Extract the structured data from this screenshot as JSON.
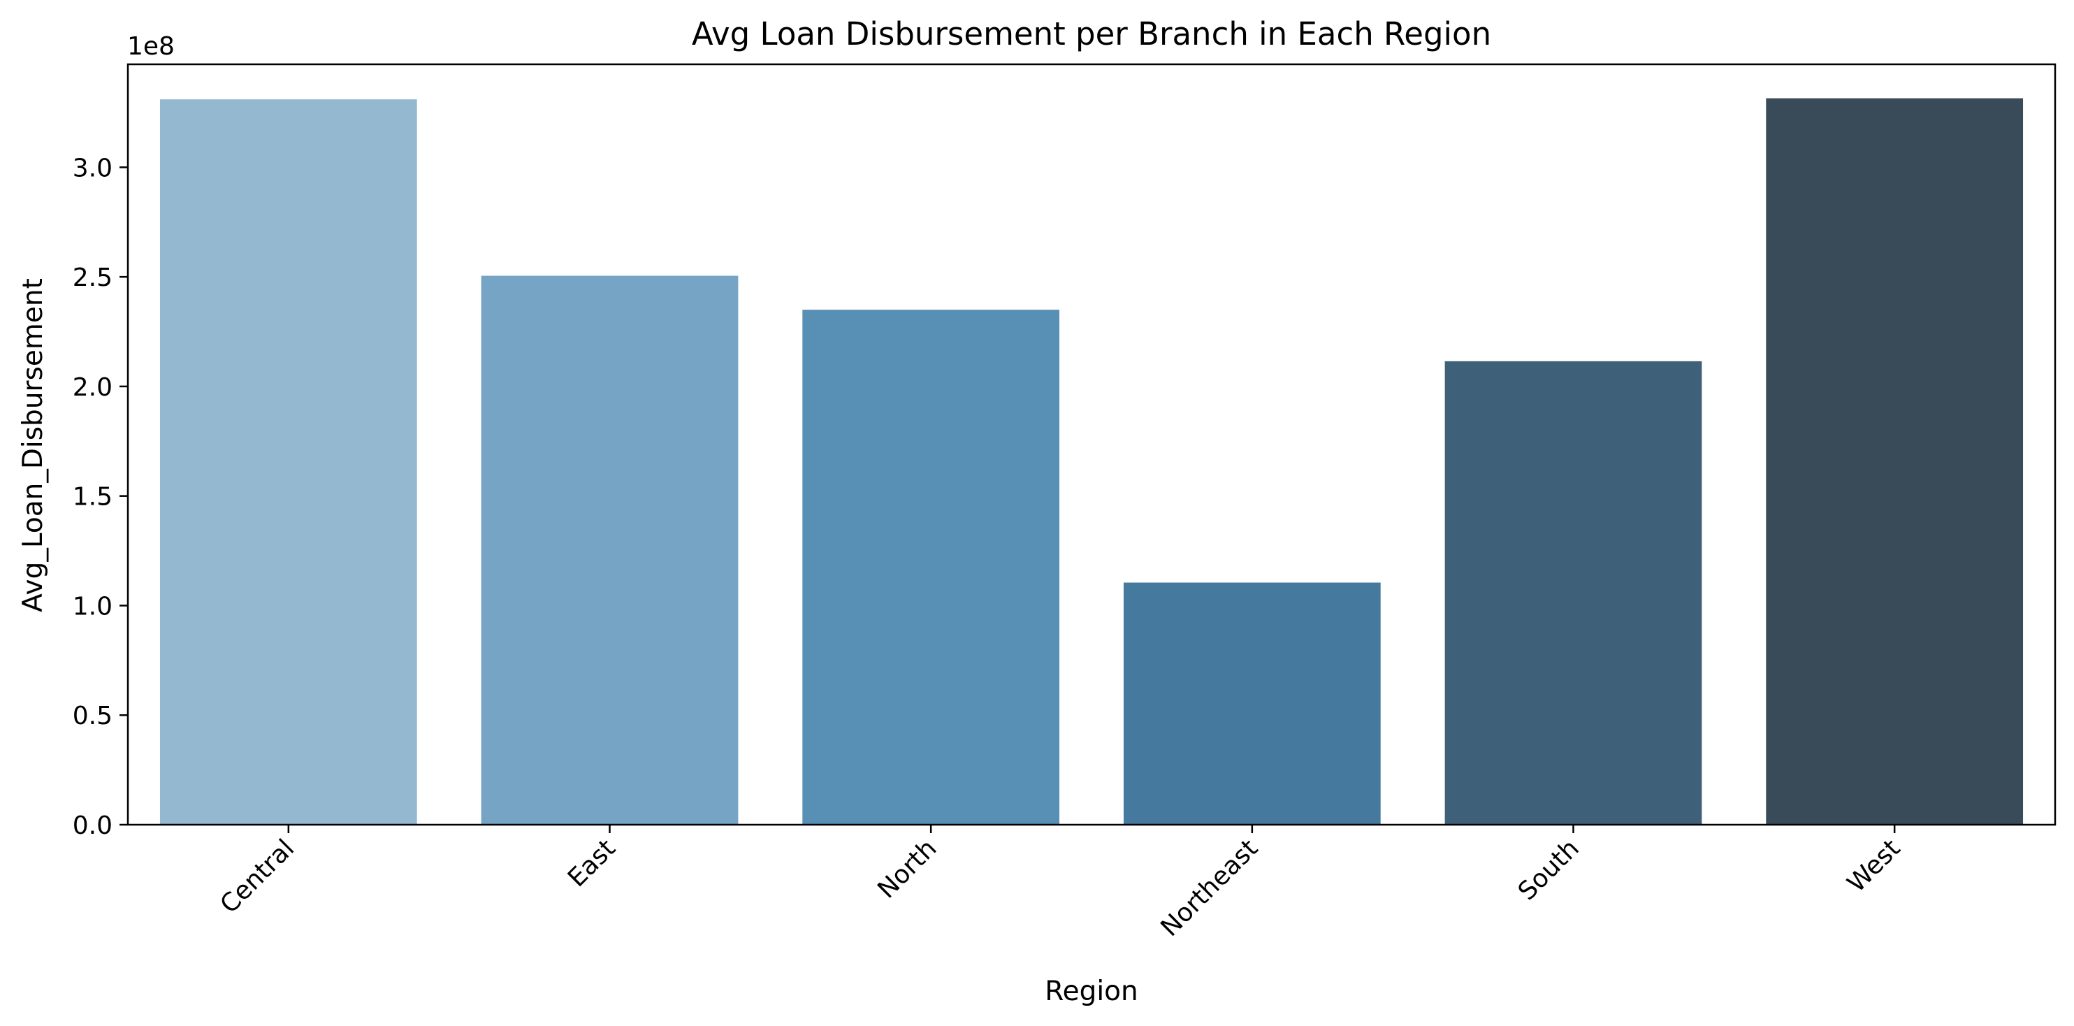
{
  "chart_data": {
    "type": "bar",
    "title": "Avg Loan Disbursement per Branch in Each Region",
    "xlabel": "Region",
    "ylabel": "Avg_Loan_Disbursement",
    "y_offset_label": "1e8",
    "y_scale": 100000000,
    "categories": [
      "Central",
      "East",
      "North",
      "Northeast",
      "South",
      "West"
    ],
    "values": [
      331000000,
      250500000,
      235000000,
      110500000,
      211500000,
      331500000
    ],
    "colors": [
      "#95b8d1",
      "#76a4c4",
      "#588fb5",
      "#46799e",
      "#3e6078",
      "#394a59"
    ],
    "ylim": [
      0,
      347000000
    ],
    "yticks": [
      0,
      50000000,
      100000000,
      150000000,
      200000000,
      250000000,
      300000000
    ],
    "ytick_labels": [
      "0.0",
      "0.5",
      "1.0",
      "1.5",
      "2.0",
      "2.5",
      "3.0"
    ],
    "xtick_rotation": 45,
    "grid": false,
    "legend": "none"
  }
}
